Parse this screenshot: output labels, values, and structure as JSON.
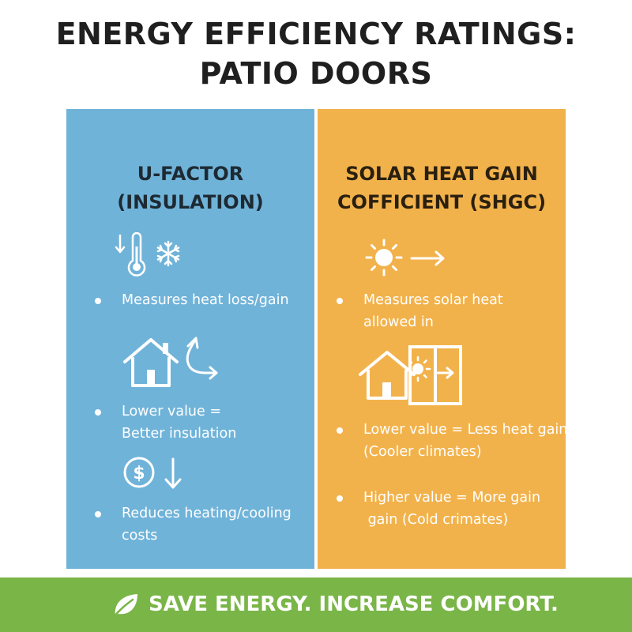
{
  "title": {
    "line1": "ENERGY EFFICIENCY RATINGS:",
    "line2": "PATIO DOORS"
  },
  "left_panel": {
    "heading_line1": "U-FACTOR",
    "heading_line2": "(INSULATION)",
    "color": "#70b3d9",
    "icons": [
      "thermometer-down-icon",
      "snowflake-icon",
      "house-icon",
      "arrow-return-icon",
      "dollar-coin-icon",
      "arrow-down-icon"
    ],
    "bullets": [
      {
        "lines": [
          "Measures heat loss/gain"
        ]
      },
      {
        "lines": [
          "Lower value =",
          "Better insulation"
        ]
      },
      {
        "lines": [
          "Reduces heating/cooling",
          "costs"
        ]
      }
    ]
  },
  "right_panel": {
    "heading_line1": "SOLAR HEAT GAIN",
    "heading_line2": "COFFICIENT (SHGC)",
    "color": "#f2b24b",
    "icons": [
      "sun-icon",
      "arrow-right-icon",
      "house-icon",
      "sun-small-icon",
      "window-icon"
    ],
    "bullets": [
      {
        "lines": [
          "Measures solar heat",
          "allowed in"
        ]
      },
      {
        "lines": [
          "Lower value = Less heat gain",
          "(Cooler climates)"
        ]
      },
      {
        "lines": [
          "Higher value = More gain",
          " gain (Cold crimates)"
        ]
      }
    ]
  },
  "footer": {
    "text": "SAVE ENERGY. INCREASE COMFORT.",
    "color": "#7ab548",
    "icon": "leaf-icon"
  }
}
